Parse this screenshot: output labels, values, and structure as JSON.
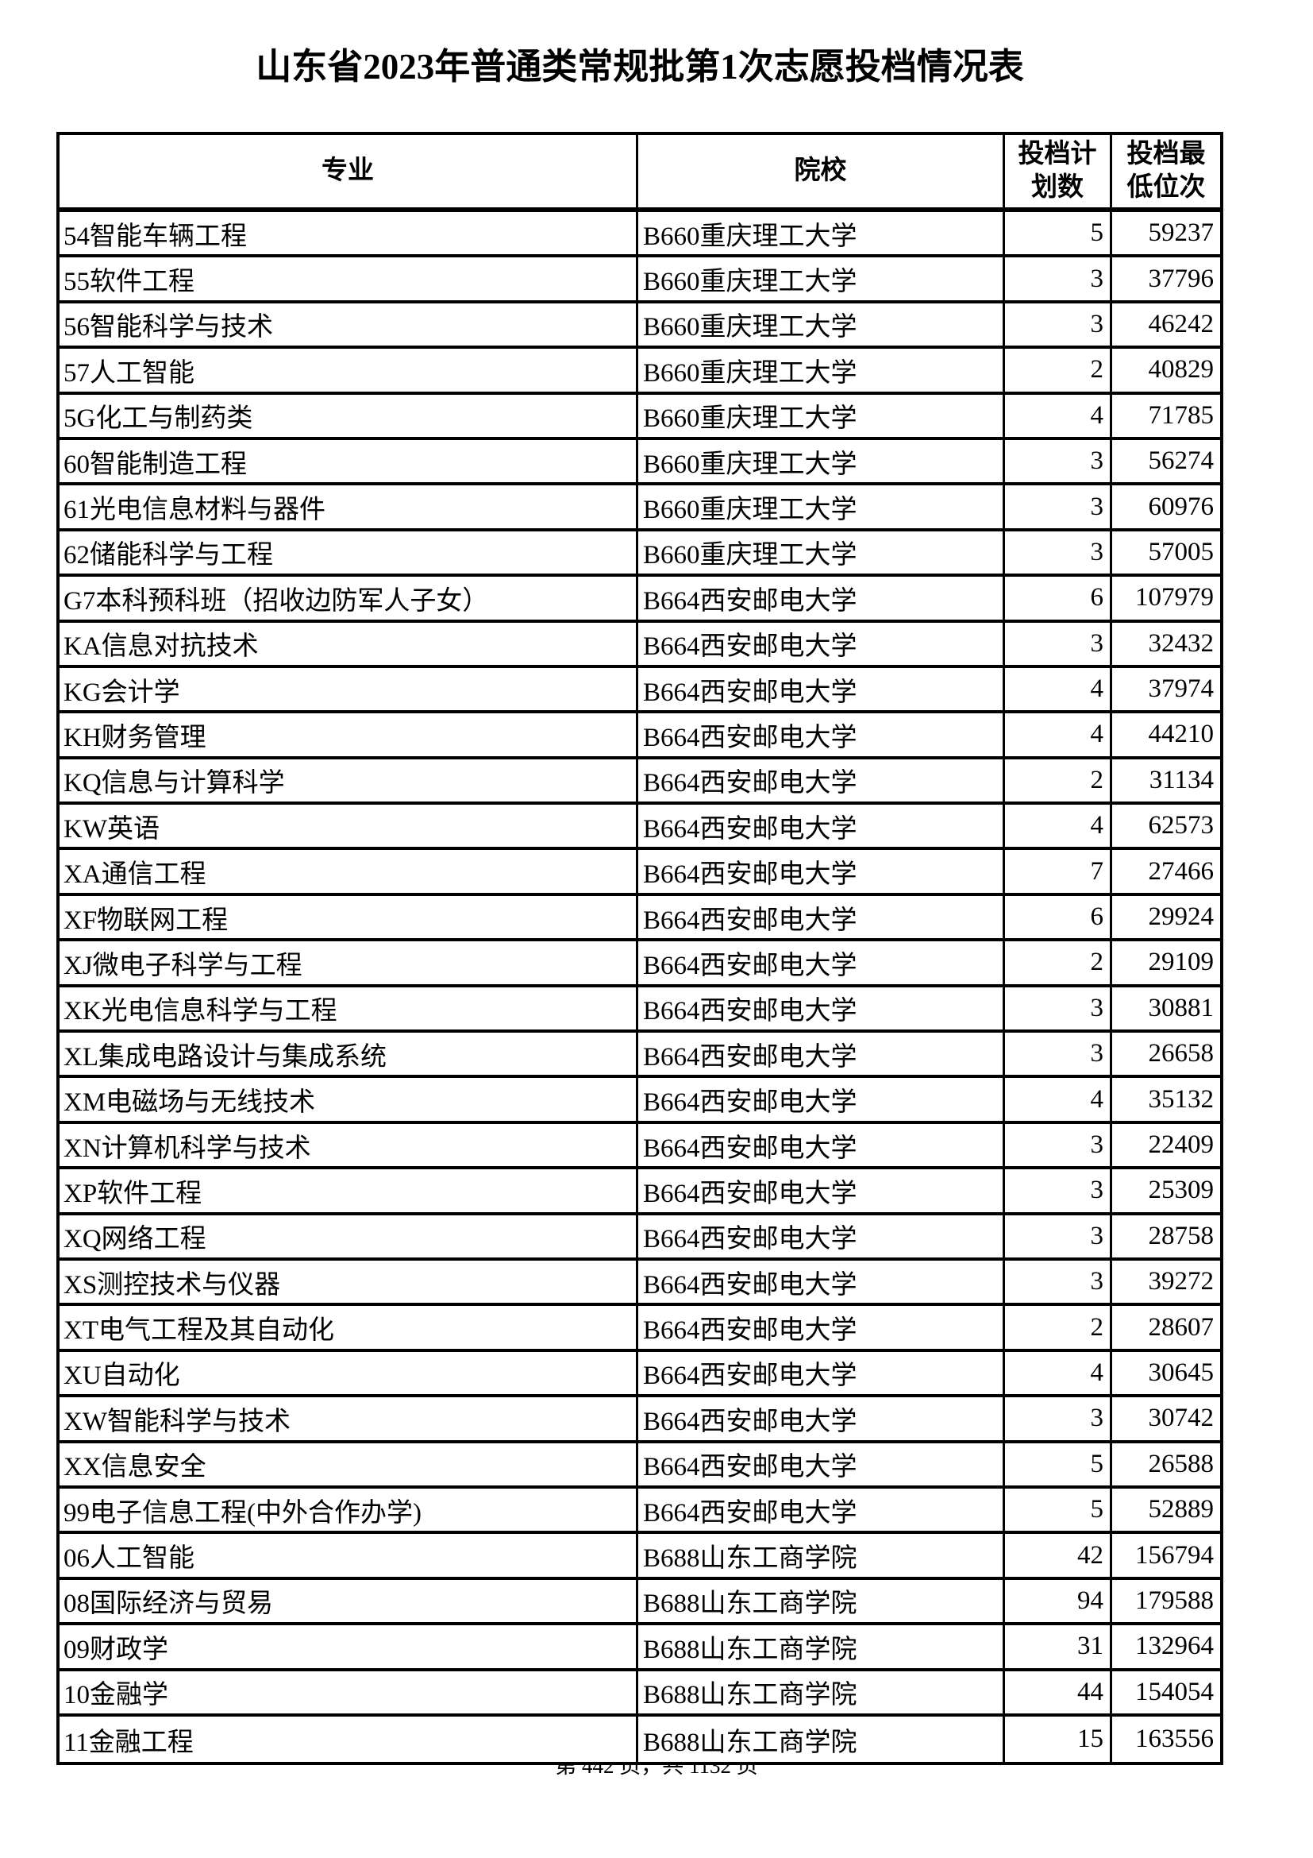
{
  "title": "山东省2023年普通类常规批第1次志愿投档情况表",
  "headers": {
    "major": "专业",
    "college": "院校",
    "plan": "投档计\n划数",
    "rank": "投档最\n低位次"
  },
  "rows": [
    {
      "major": "54智能车辆工程",
      "college": "B660重庆理工大学",
      "plan": "5",
      "rank": "59237"
    },
    {
      "major": "55软件工程",
      "college": "B660重庆理工大学",
      "plan": "3",
      "rank": "37796"
    },
    {
      "major": "56智能科学与技术",
      "college": "B660重庆理工大学",
      "plan": "3",
      "rank": "46242"
    },
    {
      "major": "57人工智能",
      "college": "B660重庆理工大学",
      "plan": "2",
      "rank": "40829"
    },
    {
      "major": "5G化工与制药类",
      "college": "B660重庆理工大学",
      "plan": "4",
      "rank": "71785"
    },
    {
      "major": "60智能制造工程",
      "college": "B660重庆理工大学",
      "plan": "3",
      "rank": "56274"
    },
    {
      "major": "61光电信息材料与器件",
      "college": "B660重庆理工大学",
      "plan": "3",
      "rank": "60976"
    },
    {
      "major": "62储能科学与工程",
      "college": "B660重庆理工大学",
      "plan": "3",
      "rank": "57005"
    },
    {
      "major": "G7本科预科班（招收边防军人子女）",
      "college": "B664西安邮电大学",
      "plan": "6",
      "rank": "107979"
    },
    {
      "major": "KA信息对抗技术",
      "college": "B664西安邮电大学",
      "plan": "3",
      "rank": "32432"
    },
    {
      "major": "KG会计学",
      "college": "B664西安邮电大学",
      "plan": "4",
      "rank": "37974"
    },
    {
      "major": "KH财务管理",
      "college": "B664西安邮电大学",
      "plan": "4",
      "rank": "44210"
    },
    {
      "major": "KQ信息与计算科学",
      "college": "B664西安邮电大学",
      "plan": "2",
      "rank": "31134"
    },
    {
      "major": "KW英语",
      "college": "B664西安邮电大学",
      "plan": "4",
      "rank": "62573"
    },
    {
      "major": "XA通信工程",
      "college": "B664西安邮电大学",
      "plan": "7",
      "rank": "27466"
    },
    {
      "major": "XF物联网工程",
      "college": "B664西安邮电大学",
      "plan": "6",
      "rank": "29924"
    },
    {
      "major": "XJ微电子科学与工程",
      "college": "B664西安邮电大学",
      "plan": "2",
      "rank": "29109"
    },
    {
      "major": "XK光电信息科学与工程",
      "college": "B664西安邮电大学",
      "plan": "3",
      "rank": "30881"
    },
    {
      "major": "XL集成电路设计与集成系统",
      "college": "B664西安邮电大学",
      "plan": "3",
      "rank": "26658"
    },
    {
      "major": "XM电磁场与无线技术",
      "college": "B664西安邮电大学",
      "plan": "4",
      "rank": "35132"
    },
    {
      "major": "XN计算机科学与技术",
      "college": "B664西安邮电大学",
      "plan": "3",
      "rank": "22409"
    },
    {
      "major": "XP软件工程",
      "college": "B664西安邮电大学",
      "plan": "3",
      "rank": "25309"
    },
    {
      "major": "XQ网络工程",
      "college": "B664西安邮电大学",
      "plan": "3",
      "rank": "28758"
    },
    {
      "major": "XS测控技术与仪器",
      "college": "B664西安邮电大学",
      "plan": "3",
      "rank": "39272"
    },
    {
      "major": "XT电气工程及其自动化",
      "college": "B664西安邮电大学",
      "plan": "2",
      "rank": "28607"
    },
    {
      "major": "XU自动化",
      "college": "B664西安邮电大学",
      "plan": "4",
      "rank": "30645"
    },
    {
      "major": "XW智能科学与技术",
      "college": "B664西安邮电大学",
      "plan": "3",
      "rank": "30742"
    },
    {
      "major": "XX信息安全",
      "college": "B664西安邮电大学",
      "plan": "5",
      "rank": "26588"
    },
    {
      "major": "99电子信息工程(中外合作办学)",
      "college": "B664西安邮电大学",
      "plan": "5",
      "rank": "52889"
    },
    {
      "major": "06人工智能",
      "college": "B688山东工商学院",
      "plan": "42",
      "rank": "156794"
    },
    {
      "major": "08国际经济与贸易",
      "college": "B688山东工商学院",
      "plan": "94",
      "rank": "179588"
    },
    {
      "major": "09财政学",
      "college": "B688山东工商学院",
      "plan": "31",
      "rank": "132964"
    },
    {
      "major": "10金融学",
      "college": "B688山东工商学院",
      "plan": "44",
      "rank": "154054"
    },
    {
      "major": "11金融工程",
      "college": "B688山东工商学院",
      "plan": "15",
      "rank": "163556"
    }
  ],
  "footer": "第 442 页，共 1132 页"
}
